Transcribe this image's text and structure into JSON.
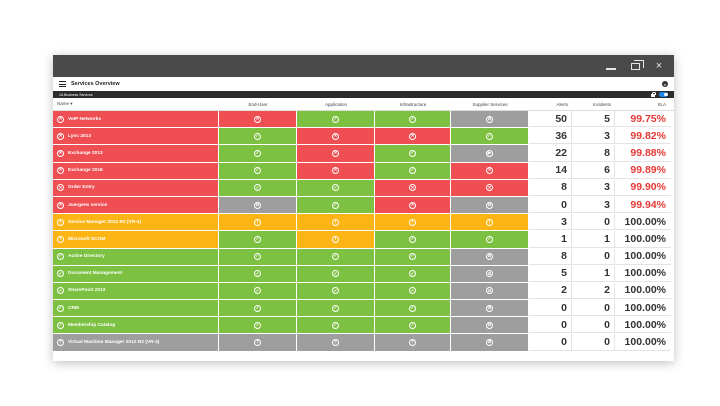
{
  "window": {
    "controls": {
      "minimize": "minimize-icon",
      "restore": "restore-icon",
      "close": "×"
    }
  },
  "header": {
    "title": "Services Overview",
    "close_glyph": "×"
  },
  "subheader": {
    "label": "1A Business Services"
  },
  "columns": {
    "name": "Name ▾",
    "end_user": "End-User",
    "application": "Application",
    "infrastructure": "Infrastructure",
    "supplier": "Supplier Services",
    "alerts": "Alerts",
    "incidents": "Incidents",
    "sla": "SLA"
  },
  "icons": {
    "ok": "✓",
    "error": "✕",
    "warning": "!",
    "unknown": "?",
    "na": "⊘",
    "play": "▶"
  },
  "colors": {
    "red": "#ef4f53",
    "green": "#7cc142",
    "amber": "#fdb515",
    "gray": "#9e9e9e",
    "sla_bad": "#e53935"
  },
  "rows": [
    {
      "name": "VoIP Networks",
      "status": "red",
      "eu": "red",
      "app": "green",
      "inf": "green",
      "sup": "gray",
      "alerts": "50",
      "incidents": "5",
      "sla": "99.75%"
    },
    {
      "name": "Lync 2013",
      "status": "red",
      "eu": "green",
      "app": "red",
      "inf": "red",
      "sup": "green",
      "alerts": "36",
      "incidents": "3",
      "sla": "99.82%"
    },
    {
      "name": "Exchange 2013",
      "status": "red",
      "eu": "green",
      "app": "red",
      "inf": "green",
      "sup": "gray-play",
      "alerts": "22",
      "incidents": "8",
      "sla": "99.88%"
    },
    {
      "name": "Exchange 2016",
      "status": "red",
      "eu": "green",
      "app": "red",
      "inf": "green",
      "sup": "red",
      "alerts": "14",
      "incidents": "6",
      "sla": "99.89%"
    },
    {
      "name": "Order Entry",
      "status": "red",
      "eu": "green",
      "app": "green",
      "inf": "red",
      "sup": "red",
      "alerts": "8",
      "incidents": "3",
      "sla": "99.90%"
    },
    {
      "name": "Juergens service",
      "status": "red",
      "eu": "gray",
      "app": "green",
      "inf": "red",
      "sup": "gray",
      "alerts": "0",
      "incidents": "3",
      "sla": "99.94%"
    },
    {
      "name": "Service Manager 2012 R2 (VR-4)",
      "status": "amber",
      "eu": "amber",
      "app": "amber",
      "inf": "amber",
      "sup": "amber",
      "alerts": "3",
      "incidents": "0",
      "sla": "100.00%"
    },
    {
      "name": "Microsoft SCOM",
      "status": "amber",
      "eu": "green",
      "app": "amber",
      "inf": "green",
      "sup": "green",
      "alerts": "1",
      "incidents": "1",
      "sla": "100.00%"
    },
    {
      "name": "Active Directory",
      "status": "green",
      "eu": "green",
      "app": "green",
      "inf": "green",
      "sup": "gray",
      "alerts": "8",
      "incidents": "0",
      "sla": "100.00%"
    },
    {
      "name": "Document Management",
      "status": "green",
      "eu": "green",
      "app": "green",
      "inf": "green",
      "sup": "gray",
      "alerts": "5",
      "incidents": "1",
      "sla": "100.00%"
    },
    {
      "name": "SharePoint 2013",
      "status": "green",
      "eu": "green",
      "app": "green",
      "inf": "green",
      "sup": "gray",
      "alerts": "2",
      "incidents": "2",
      "sla": "100.00%"
    },
    {
      "name": "CRM",
      "status": "green",
      "eu": "green",
      "app": "green",
      "inf": "green",
      "sup": "gray",
      "alerts": "0",
      "incidents": "0",
      "sla": "100.00%"
    },
    {
      "name": "Membership Catalog",
      "status": "green",
      "eu": "green",
      "app": "green",
      "inf": "green",
      "sup": "gray",
      "alerts": "0",
      "incidents": "0",
      "sla": "100.00%"
    },
    {
      "name": "Virtual Machine Manager 2012 R2 (VR-4)",
      "status": "gray",
      "eu": "gray-unknown",
      "app": "gray-unknown",
      "inf": "gray-unknown",
      "sup": "gray",
      "alerts": "0",
      "incidents": "0",
      "sla": "100.00%"
    }
  ]
}
